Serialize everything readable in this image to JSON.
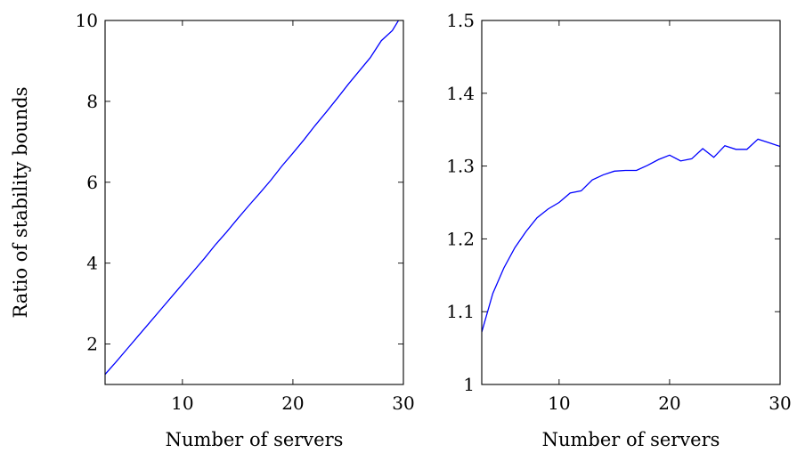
{
  "chart_data": [
    {
      "type": "line",
      "title": "",
      "xlabel": "Number of servers",
      "ylabel": "Ratio of stability bounds",
      "xlim": [
        3,
        30
      ],
      "ylim": [
        1.0,
        10.0
      ],
      "xticks": [
        10,
        20,
        30
      ],
      "yticks": [
        2,
        4,
        6,
        8,
        10
      ],
      "xtick_labels": [
        "10",
        "20",
        "30"
      ],
      "ytick_labels": [
        "2",
        "4",
        "6",
        "8",
        "10"
      ],
      "grid": false,
      "series": [
        {
          "color": "#0000ff",
          "x": [
            3,
            4,
            5,
            6,
            7,
            8,
            9,
            10,
            11,
            12,
            13,
            14,
            15,
            16,
            17,
            18,
            19,
            20,
            21,
            22,
            23,
            24,
            25,
            26,
            27,
            28,
            29,
            30
          ],
          "y": [
            1.25,
            1.56,
            1.88,
            2.2,
            2.52,
            2.84,
            3.16,
            3.48,
            3.8,
            4.12,
            4.46,
            4.77,
            5.1,
            5.42,
            5.73,
            6.05,
            6.4,
            6.72,
            7.05,
            7.4,
            7.73,
            8.07,
            8.42,
            8.75,
            9.08,
            9.5,
            9.75,
            10.2
          ]
        }
      ]
    },
    {
      "type": "line",
      "title": "",
      "xlabel": "Number of servers",
      "ylabel": "",
      "xlim": [
        3,
        30
      ],
      "ylim": [
        1.0,
        1.5
      ],
      "xticks": [
        10,
        20,
        30
      ],
      "yticks": [
        1.0,
        1.1,
        1.2,
        1.3,
        1.4,
        1.5
      ],
      "xtick_labels": [
        "10",
        "20",
        "30"
      ],
      "ytick_labels": [
        "1",
        "1.1",
        "1.2",
        "1.3",
        "1.4",
        "1.5"
      ],
      "grid": false,
      "series": [
        {
          "color": "#0000ff",
          "x": [
            3,
            4,
            5,
            6,
            7,
            8,
            9,
            10,
            11,
            12,
            13,
            14,
            15,
            16,
            17,
            18,
            19,
            20,
            21,
            22,
            23,
            24,
            25,
            26,
            27,
            28,
            29,
            30
          ],
          "y": [
            1.072,
            1.125,
            1.16,
            1.188,
            1.21,
            1.229,
            1.241,
            1.25,
            1.263,
            1.266,
            1.281,
            1.288,
            1.293,
            1.294,
            1.294,
            1.301,
            1.309,
            1.315,
            1.307,
            1.31,
            1.324,
            1.312,
            1.328,
            1.323,
            1.323,
            1.337,
            1.332,
            1.327
          ]
        }
      ]
    }
  ]
}
